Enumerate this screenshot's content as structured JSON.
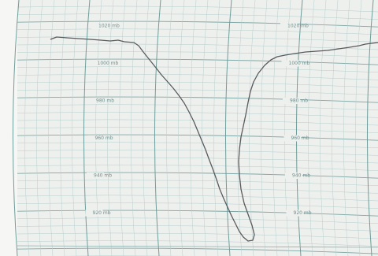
{
  "scale_labels": {
    "left": [
      "1020 mb",
      "1000 mb",
      "980 mb",
      "960 mb",
      "940 mb",
      "920 mb"
    ],
    "right": [
      "1020 mb",
      "1000 mb",
      "980 mb",
      "960 mb",
      "940 mb",
      "920 mb"
    ]
  }
}
